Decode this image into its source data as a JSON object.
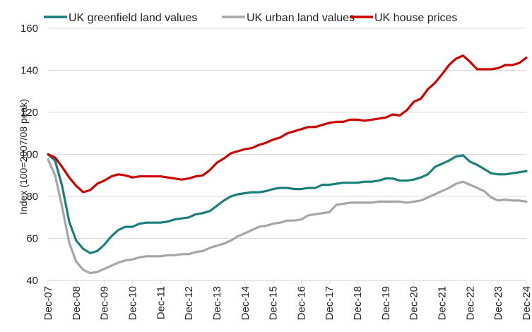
{
  "chart_data": {
    "type": "line",
    "title": "",
    "xlabel": "",
    "ylabel": "Index (100=2007/08 peak)",
    "ylim": [
      40,
      160
    ],
    "yticks": [
      40,
      60,
      80,
      100,
      120,
      140,
      160
    ],
    "grid": true,
    "legend_position": "top",
    "x_tick_labels": [
      "Dec-07",
      "Dec-08",
      "Dec-09",
      "Dec-10",
      "Dec-11",
      "Dec-12",
      "Dec-13",
      "Dec-14",
      "Dec-15",
      "Dec-16",
      "Dec-17",
      "Dec-18",
      "Dec-19",
      "Dec-20",
      "Dec-21",
      "Dec-22",
      "Dec-23",
      "Dec-24"
    ],
    "x_frequency": "quarterly",
    "series": [
      {
        "name": "UK greenfield land values",
        "color": "#1a7f7a",
        "values": [
          100,
          97,
          85,
          68,
          59,
          55,
          53,
          54,
          57,
          61,
          64,
          65.5,
          65.5,
          67,
          67.5,
          67.5,
          67.5,
          68,
          69,
          69.5,
          70,
          71.5,
          72,
          73,
          75.5,
          78,
          80,
          81,
          81.5,
          82,
          82,
          82.5,
          83.5,
          84,
          84,
          83.5,
          83.5,
          84,
          84,
          85.5,
          85.5,
          86,
          86.5,
          86.5,
          86.5,
          87,
          87,
          87.5,
          88.5,
          88.5,
          87.5,
          87.5,
          88,
          89,
          90.5,
          94,
          95.5,
          97,
          99,
          99.5,
          96.5,
          95,
          93,
          91,
          90.5,
          90.5,
          91,
          91.5,
          92
        ]
      },
      {
        "name": "UK urban land values",
        "color": "#a6a6a6",
        "values": [
          97.5,
          90,
          75,
          58,
          49,
          45,
          43.5,
          44,
          45.5,
          47,
          48.5,
          49.5,
          50,
          51,
          51.5,
          51.5,
          51.5,
          52,
          52,
          52.5,
          52.5,
          53.5,
          54,
          55.5,
          56.5,
          57.5,
          59,
          61,
          62.5,
          64,
          65.5,
          66,
          67,
          67.5,
          68.5,
          68.5,
          69,
          71,
          71.5,
          72,
          72.5,
          76,
          76.5,
          77,
          77,
          77,
          77,
          77.5,
          77.5,
          77.5,
          77.5,
          77,
          77.5,
          78,
          79.5,
          81,
          82.5,
          84,
          86,
          87,
          85.5,
          84,
          82.5,
          79.5,
          78,
          78.5,
          78,
          78,
          77.5
        ]
      },
      {
        "name": "UK house prices",
        "color": "#cc0000",
        "values": [
          100,
          98.5,
          94,
          89,
          85,
          82,
          83,
          86,
          87.5,
          89.5,
          90.5,
          90,
          89,
          89.5,
          89.5,
          89.5,
          89.5,
          89,
          88.5,
          88,
          88.5,
          89.5,
          90,
          92.5,
          96,
          98,
          100.5,
          101.5,
          102.5,
          103,
          104.5,
          105.5,
          107,
          108,
          110,
          111,
          112,
          113,
          113,
          114,
          115,
          115.5,
          115.5,
          116.5,
          116.5,
          116,
          116.5,
          117,
          117.5,
          119,
          118.5,
          121,
          125,
          126.5,
          131,
          134,
          138,
          142.5,
          145.5,
          147,
          144,
          140.5,
          140.5,
          140.5,
          141,
          142.5,
          142.5,
          143.5,
          146
        ]
      }
    ]
  }
}
